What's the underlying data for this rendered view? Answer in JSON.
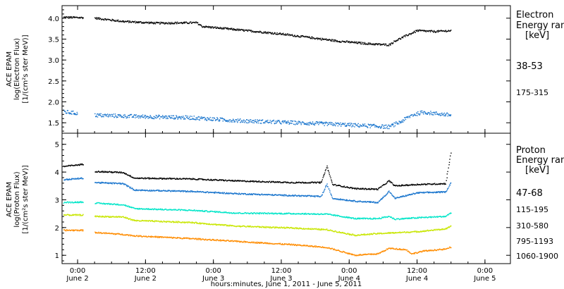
{
  "x_axis": {
    "title": "hours:minutes, June  1, 2011 - June  5, 2011",
    "ticks": [
      {
        "h": 24,
        "time": "0:00",
        "day": "June 2"
      },
      {
        "h": 36,
        "time": "12:00",
        "day": "June 2"
      },
      {
        "h": 48,
        "time": "0:00",
        "day": "June 3"
      },
      {
        "h": 60,
        "time": "12:00",
        "day": "June 3"
      },
      {
        "h": 72,
        "time": "0:00",
        "day": "June 4"
      },
      {
        "h": 84,
        "time": "12:00",
        "day": "June 4"
      },
      {
        "h": 96,
        "time": "0:00",
        "day": "June 5"
      }
    ]
  },
  "panels": [
    {
      "id": "electron",
      "ylabel_lines": [
        "ACE EPAM",
        "log(Electron Flux)",
        "[1/(cm²s ster MeV)]"
      ],
      "side_title": [
        "Electron",
        "Energy ranges",
        "[keV]"
      ],
      "ylim": [
        1.25,
        4.3
      ],
      "yticks": [
        "1.5",
        "2.0",
        "2.5",
        "3.0",
        "3.5",
        "4.0"
      ],
      "bands": [
        {
          "label": "38-53",
          "color": "#000000"
        },
        {
          "label": "175-315",
          "color": "#1874cd"
        }
      ]
    },
    {
      "id": "proton",
      "ylabel_lines": [
        "ACE EPAM",
        "log(Proton Flux)",
        "[1/(cm²s ster MeV)]"
      ],
      "side_title": [
        "Proton",
        "Energy ranges",
        "[keV]"
      ],
      "ylim": [
        0.7,
        5.4
      ],
      "yticks": [
        "1",
        "2",
        "3",
        "4",
        "5"
      ],
      "bands": [
        {
          "label": "47-68",
          "color": "#000000"
        },
        {
          "label": "115-195",
          "color": "#1874cd"
        },
        {
          "label": "310-580",
          "color": "#00e5c8"
        },
        {
          "label": "795-1193",
          "color": "#c8e600"
        },
        {
          "label": "1060-1900",
          "color": "#ff8c00"
        }
      ]
    }
  ],
  "chart_data": [
    {
      "type": "scatter",
      "title": "",
      "xlabel": "hours:minutes, June  1, 2011 - June  5, 2011",
      "ylabel": "ACE EPAM log(Electron Flux) [1/(cm²s ster MeV)]",
      "xlim": [
        "2011-06-01 21:15",
        "2011-06-05 04:30"
      ],
      "ylim": [
        1.25,
        4.3
      ],
      "series": [
        {
          "name": "38-53",
          "color": "#000000",
          "points": [
            [
              "2011-06-01 21:30",
              4.02
            ],
            [
              "2011-06-02 01:00",
              4.01
            ],
            [
              "2011-06-02 03:00",
              4.0
            ],
            [
              "2011-06-02 08:00",
              3.92
            ],
            [
              "2011-06-02 14:00",
              3.88
            ],
            [
              "2011-06-02 21:00",
              3.89
            ],
            [
              "2011-06-02 22:00",
              3.8
            ],
            [
              "2011-06-03 02:00",
              3.75
            ],
            [
              "2011-06-03 12:00",
              3.62
            ],
            [
              "2011-06-03 22:00",
              3.45
            ],
            [
              "2011-06-04 04:00",
              3.38
            ],
            [
              "2011-06-04 07:00",
              3.36
            ],
            [
              "2011-06-04 08:00",
              3.45
            ],
            [
              "2011-06-04 10:00",
              3.58
            ],
            [
              "2011-06-04 12:00",
              3.7
            ],
            [
              "2011-06-04 15:00",
              3.68
            ],
            [
              "2011-06-04 18:00",
              3.7
            ]
          ]
        },
        {
          "name": "175-315",
          "color": "#1874cd",
          "points": [
            [
              "2011-06-01 21:30",
              1.76
            ],
            [
              "2011-06-02 00:00",
              1.72
            ],
            [
              "2011-06-02 03:00",
              1.68
            ],
            [
              "2011-06-02 10:00",
              1.65
            ],
            [
              "2011-06-02 20:00",
              1.62
            ],
            [
              "2011-06-03 04:00",
              1.55
            ],
            [
              "2011-06-03 14:00",
              1.5
            ],
            [
              "2011-06-03 22:00",
              1.46
            ],
            [
              "2011-06-04 04:00",
              1.42
            ],
            [
              "2011-06-04 07:00",
              1.4
            ],
            [
              "2011-06-04 09:00",
              1.52
            ],
            [
              "2011-06-04 11:00",
              1.68
            ],
            [
              "2011-06-04 13:00",
              1.75
            ],
            [
              "2011-06-04 18:00",
              1.68
            ]
          ]
        }
      ]
    },
    {
      "type": "scatter",
      "title": "",
      "xlabel": "hours:minutes, June  1, 2011 - June  5, 2011",
      "ylabel": "ACE EPAM log(Proton Flux) [1/(cm²s ster MeV)]",
      "xlim": [
        "2011-06-01 21:15",
        "2011-06-05 04:30"
      ],
      "ylim": [
        0.7,
        5.4
      ],
      "series": [
        {
          "name": "47-68",
          "color": "#000000",
          "points": [
            [
              "2011-06-01 21:30",
              4.2
            ],
            [
              "2011-06-02 01:00",
              4.28
            ],
            [
              "2011-06-02 03:00",
              4.02
            ],
            [
              "2011-06-02 08:00",
              3.98
            ],
            [
              "2011-06-02 10:00",
              3.78
            ],
            [
              "2011-06-02 20:00",
              3.75
            ],
            [
              "2011-06-03 04:00",
              3.68
            ],
            [
              "2011-06-03 14:00",
              3.62
            ],
            [
              "2011-06-03 19:00",
              3.62
            ],
            [
              "2011-06-03 20:00",
              4.2
            ],
            [
              "2011-06-03 21:00",
              3.55
            ],
            [
              "2011-06-04 01:00",
              3.4
            ],
            [
              "2011-06-04 05:00",
              3.38
            ],
            [
              "2011-06-04 07:00",
              3.68
            ],
            [
              "2011-06-04 08:00",
              3.5
            ],
            [
              "2011-06-04 12:00",
              3.55
            ],
            [
              "2011-06-04 17:00",
              3.58
            ],
            [
              "2011-06-04 18:00",
              4.8
            ]
          ]
        },
        {
          "name": "115-195",
          "color": "#1874cd",
          "points": [
            [
              "2011-06-01 21:30",
              3.72
            ],
            [
              "2011-06-02 01:00",
              3.78
            ],
            [
              "2011-06-02 03:00",
              3.62
            ],
            [
              "2011-06-02 08:00",
              3.58
            ],
            [
              "2011-06-02 10:00",
              3.35
            ],
            [
              "2011-06-02 20:00",
              3.3
            ],
            [
              "2011-06-03 04:00",
              3.22
            ],
            [
              "2011-06-03 14:00",
              3.15
            ],
            [
              "2011-06-03 19:00",
              3.12
            ],
            [
              "2011-06-03 20:00",
              3.55
            ],
            [
              "2011-06-03 21:00",
              3.05
            ],
            [
              "2011-06-04 01:00",
              2.95
            ],
            [
              "2011-06-04 05:00",
              2.9
            ],
            [
              "2011-06-04 07:00",
              3.3
            ],
            [
              "2011-06-04 08:00",
              3.05
            ],
            [
              "2011-06-04 12:00",
              3.25
            ],
            [
              "2011-06-04 17:00",
              3.28
            ],
            [
              "2011-06-04 18:00",
              3.65
            ]
          ]
        },
        {
          "name": "310-580",
          "color": "#00e5c8",
          "points": [
            [
              "2011-06-01 21:30",
              2.9
            ],
            [
              "2011-06-02 01:00",
              2.92
            ],
            [
              "2011-06-02 03:00",
              2.88
            ],
            [
              "2011-06-02 08:00",
              2.82
            ],
            [
              "2011-06-02 10:00",
              2.68
            ],
            [
              "2011-06-02 20:00",
              2.62
            ],
            [
              "2011-06-03 04:00",
              2.52
            ],
            [
              "2011-06-03 14:00",
              2.5
            ],
            [
              "2011-06-03 20:00",
              2.48
            ],
            [
              "2011-06-04 01:00",
              2.32
            ],
            [
              "2011-06-04 05:00",
              2.32
            ],
            [
              "2011-06-04 07:00",
              2.4
            ],
            [
              "2011-06-04 08:00",
              2.3
            ],
            [
              "2011-06-04 12:00",
              2.35
            ],
            [
              "2011-06-04 17:00",
              2.4
            ],
            [
              "2011-06-04 18:00",
              2.55
            ]
          ]
        },
        {
          "name": "795-1193",
          "color": "#c8e600",
          "points": [
            [
              "2011-06-01 21:30",
              2.45
            ],
            [
              "2011-06-02 01:00",
              2.45
            ],
            [
              "2011-06-02 03:00",
              2.4
            ],
            [
              "2011-06-02 08:00",
              2.38
            ],
            [
              "2011-06-02 10:00",
              2.25
            ],
            [
              "2011-06-02 20:00",
              2.18
            ],
            [
              "2011-06-03 04:00",
              2.05
            ],
            [
              "2011-06-03 14:00",
              1.98
            ],
            [
              "2011-06-03 20:00",
              1.92
            ],
            [
              "2011-06-04 01:00",
              1.72
            ],
            [
              "2011-06-04 05:00",
              1.78
            ],
            [
              "2011-06-04 07:00",
              1.8
            ],
            [
              "2011-06-04 12:00",
              1.85
            ],
            [
              "2011-06-04 17:00",
              1.95
            ],
            [
              "2011-06-04 18:00",
              2.05
            ]
          ]
        },
        {
          "name": "1060-1900",
          "color": "#ff8c00",
          "points": [
            [
              "2011-06-01 21:30",
              1.9
            ],
            [
              "2011-06-02 01:00",
              1.9
            ],
            [
              "2011-06-02 03:00",
              1.82
            ],
            [
              "2011-06-02 08:00",
              1.75
            ],
            [
              "2011-06-02 10:00",
              1.7
            ],
            [
              "2011-06-02 20:00",
              1.6
            ],
            [
              "2011-06-03 04:00",
              1.5
            ],
            [
              "2011-06-03 14:00",
              1.38
            ],
            [
              "2011-06-03 20:00",
              1.28
            ],
            [
              "2011-06-04 01:00",
              1.0
            ],
            [
              "2011-06-04 05:00",
              1.05
            ],
            [
              "2011-06-04 07:00",
              1.25
            ],
            [
              "2011-06-04 10:00",
              1.2
            ],
            [
              "2011-06-04 11:00",
              1.05
            ],
            [
              "2011-06-04 13:00",
              1.15
            ],
            [
              "2011-06-04 17:00",
              1.22
            ],
            [
              "2011-06-04 18:00",
              1.3
            ]
          ]
        }
      ]
    }
  ]
}
